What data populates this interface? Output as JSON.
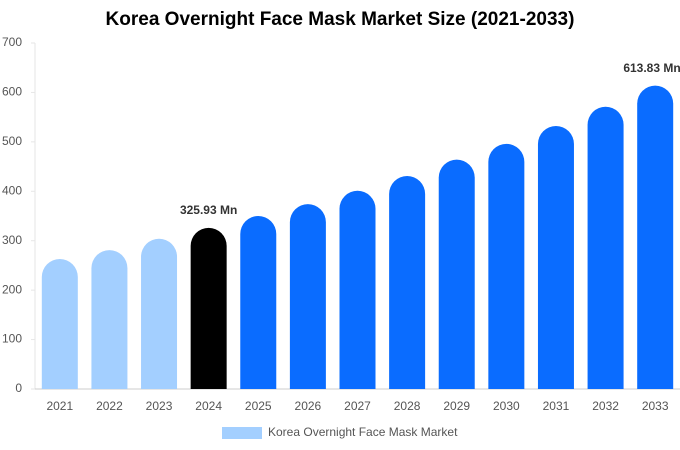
{
  "chart_data": {
    "type": "bar",
    "title": "Korea Overnight Face Mask Market Size (2021-2033)",
    "categories": [
      "2021",
      "2022",
      "2023",
      "2024",
      "2025",
      "2026",
      "2027",
      "2028",
      "2029",
      "2030",
      "2031",
      "2032",
      "2033"
    ],
    "series": [
      {
        "name": "Korea Overnight Face Mask Market",
        "color": "#a3cfff",
        "colors": [
          "#a3cfff",
          "#a3cfff",
          "#a3cfff",
          "#000000",
          "#0a6cff",
          "#0a6cff",
          "#0a6cff",
          "#0a6cff",
          "#0a6cff",
          "#0a6cff",
          "#0a6cff",
          "#0a6cff",
          "#0a6cff"
        ],
        "values": [
          263,
          281,
          304,
          325.93,
          350,
          374,
          401,
          431,
          464,
          496,
          532,
          571,
          613.83
        ],
        "value_labels": [
          null,
          null,
          null,
          "325.93 Mn",
          null,
          null,
          null,
          null,
          null,
          null,
          null,
          null,
          "613.83 Mn"
        ]
      }
    ],
    "ylim": [
      0,
      700
    ],
    "yticks": [
      0,
      100,
      200,
      300,
      400,
      500,
      600,
      700
    ],
    "grid": false
  }
}
